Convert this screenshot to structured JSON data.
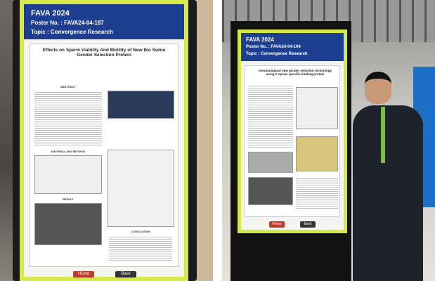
{
  "left_photo": {
    "poster": {
      "logo": "FAVA 2024",
      "poster_no": "Poster No. : FAVA24-04-187",
      "topic": "Topic : Convergence Research",
      "title": "Effects on Sperm Viability And Motility of New Bio Swine Gender Selection Protein",
      "sections": [
        "ABSTRACT",
        "MATERIAL AND METHOD",
        "RESULT",
        "CONCLUSION"
      ],
      "buttons": [
        "Home",
        "Back"
      ]
    }
  },
  "right_photo": {
    "poster": {
      "logo": "FAVA 2024",
      "poster_no": "Poster No. : FAVA24-04-194",
      "topic": "Topic : Convergence Research",
      "title": "Immunological new gender selection technology using X sperm specific binding protein",
      "buttons": [
        "Home",
        "Back"
      ]
    }
  }
}
